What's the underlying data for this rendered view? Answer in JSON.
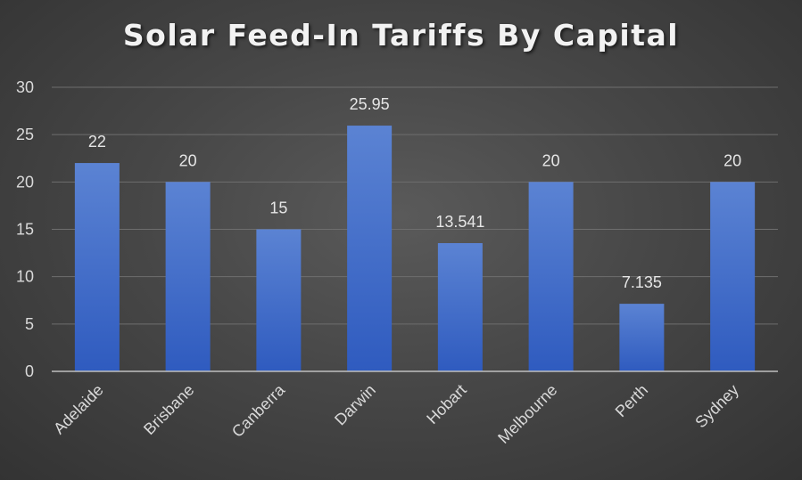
{
  "chart_data": {
    "type": "bar",
    "title": "Solar Feed-In Tariffs By Capital",
    "categories": [
      "Adelaide",
      "Brisbane",
      "Canberra",
      "Darwin",
      "Hobart",
      "Melbourne",
      "Perth",
      "Sydney"
    ],
    "values": [
      22,
      20,
      15,
      25.95,
      13.541,
      20,
      7.135,
      20
    ],
    "data_labels": [
      "22",
      "20",
      "15",
      "25.95",
      "13.541",
      "20",
      "7.135",
      "20"
    ],
    "y_ticks": [
      "0",
      "5",
      "10",
      "15",
      "20",
      "25",
      "30"
    ],
    "ylim": [
      0,
      30
    ],
    "grid": true,
    "xlabel": "",
    "ylabel": "",
    "colors": {
      "bar_top": "#5b83d3",
      "bar_bottom": "#2f5bbf",
      "grid": "#6e6e6e",
      "axis": "#bfbfbf"
    }
  }
}
